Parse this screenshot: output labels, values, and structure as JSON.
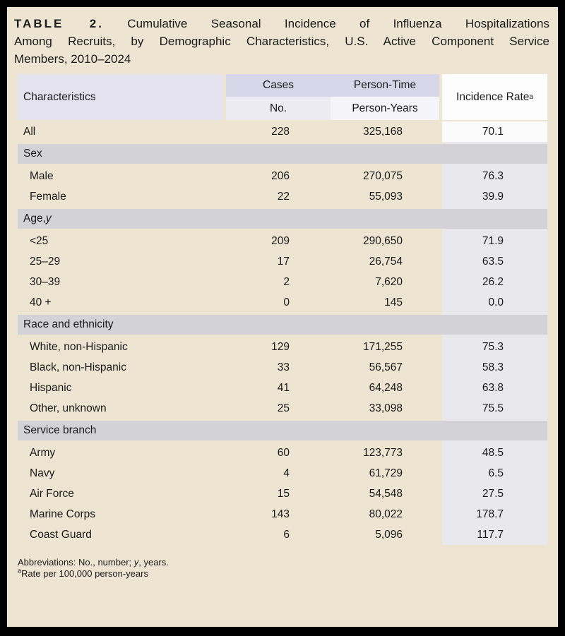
{
  "colors": {
    "page_background": "#ede4d1",
    "frame_border": "#000000",
    "section_band": "#d3d2d7",
    "header_top_lavender": "#d8d6e9",
    "header_characteristics": "#e4e2ef",
    "header_no_cell": "#eceaf3",
    "header_person_years_cell": "#f5f4f8",
    "header_incidence_cell": "#fdfdfe",
    "incidence_column_strip": "#e9e8ed",
    "all_row_incidence_cell": "#fbfbfc",
    "text": "#1a1a1a"
  },
  "title": {
    "label": "TABLE 2.",
    "line1_rest": "Cumulative Seasonal Incidence of Influenza Hospitalizations",
    "line2": "Among Recruits, by Demographic Characteristics, U.S. Active Component Service",
    "line3": "Members, 2010–2024"
  },
  "header": {
    "characteristics": "Characteristics",
    "cases": "Cases",
    "person_time": "Person-Time",
    "no": "No.",
    "person_years": "Person-Years",
    "incidence_rate": "Incidence Rate",
    "incidence_rate_footnote_marker": "a"
  },
  "all_row": {
    "label": "All",
    "cases": "228",
    "person_years": "325,168",
    "rate": "70.1"
  },
  "sections": [
    {
      "label_main": "Sex",
      "label_italic": "",
      "rows": [
        {
          "label": "Male",
          "cases": "206",
          "person_years": "270,075",
          "rate": "76.3"
        },
        {
          "label": "Female",
          "cases": "22",
          "person_years": "55,093",
          "rate": "39.9"
        }
      ]
    },
    {
      "label_main": "Age, ",
      "label_italic": "y",
      "rows": [
        {
          "label": "<25",
          "cases": "209",
          "person_years": "290,650",
          "rate": "71.9"
        },
        {
          "label": "25–29",
          "cases": "17",
          "person_years": "26,754",
          "rate": "63.5"
        },
        {
          "label": "30–39",
          "cases": "2",
          "person_years": "7,620",
          "rate": "26.2"
        },
        {
          "label": "40 +",
          "cases": "0",
          "person_years": "145",
          "rate": "0.0"
        }
      ]
    },
    {
      "label_main": "Race and ethnicity",
      "label_italic": "",
      "rows": [
        {
          "label": "White, non-Hispanic",
          "cases": "129",
          "person_years": "171,255",
          "rate": "75.3"
        },
        {
          "label": "Black, non-Hispanic",
          "cases": "33",
          "person_years": "56,567",
          "rate": "58.3"
        },
        {
          "label": "Hispanic",
          "cases": "41",
          "person_years": "64,248",
          "rate": "63.8"
        },
        {
          "label": "Other, unknown",
          "cases": "25",
          "person_years": "33,098",
          "rate": "75.5"
        }
      ]
    },
    {
      "label_main": "Service branch",
      "label_italic": "",
      "rows": [
        {
          "label": "Army",
          "cases": "60",
          "person_years": "123,773",
          "rate": "48.5"
        },
        {
          "label": "Navy",
          "cases": "4",
          "person_years": "61,729",
          "rate": "6.5"
        },
        {
          "label": "Air Force",
          "cases": "15",
          "person_years": "54,548",
          "rate": "27.5"
        },
        {
          "label": "Marine Corps",
          "cases": "143",
          "person_years": "80,022",
          "rate": "178.7"
        },
        {
          "label": "Coast Guard",
          "cases": "6",
          "person_years": "5,096",
          "rate": "117.7"
        }
      ]
    }
  ],
  "footnotes": {
    "abbr_pre": "Abbreviations: No., number; ",
    "abbr_italic": "y",
    "abbr_post": ", years.",
    "rate_marker": "a",
    "rate_text": "Rate per 100,000 person-years"
  }
}
